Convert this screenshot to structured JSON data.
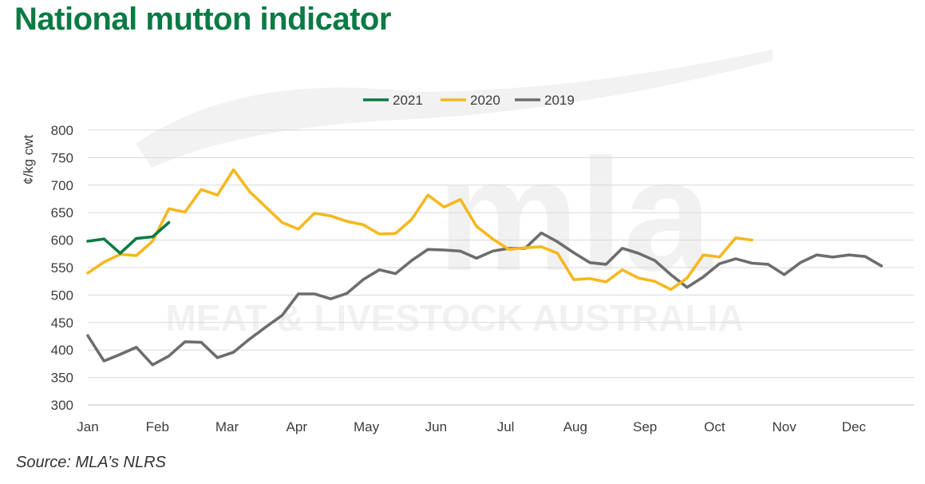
{
  "title": "National mutton indicator",
  "source": "Source: MLA’s NLRS",
  "watermark": {
    "logo_text": "mla",
    "tagline": "MEAT & LIVESTOCK AUSTRALIA"
  },
  "colors": {
    "s2021": "#0b7a45",
    "s2020": "#f5b81f",
    "s2019": "#6d6d6d",
    "grid": "#d9d9d9",
    "title": "#0b7a45"
  },
  "chart_data": {
    "type": "line",
    "ylabel": "¢/kg cwt",
    "xlabel": "",
    "ylim": [
      300,
      800
    ],
    "yticks": [
      300,
      350,
      400,
      450,
      500,
      550,
      600,
      650,
      700,
      750,
      800
    ],
    "xlim": [
      0,
      51
    ],
    "x_ticks": [
      {
        "label": "Jan",
        "week": 0
      },
      {
        "label": "Feb",
        "week": 4.3
      },
      {
        "label": "Mar",
        "week": 8.6
      },
      {
        "label": "Apr",
        "week": 12.9
      },
      {
        "label": "May",
        "week": 17.2
      },
      {
        "label": "Jun",
        "week": 21.5
      },
      {
        "label": "Jul",
        "week": 25.8
      },
      {
        "label": "Aug",
        "week": 30.1
      },
      {
        "label": "Sep",
        "week": 34.4
      },
      {
        "label": "Oct",
        "week": 38.7
      },
      {
        "label": "Nov",
        "week": 43
      },
      {
        "label": "Dec",
        "week": 47.3
      }
    ],
    "legend_position": "top-center",
    "grid": true,
    "series": [
      {
        "name": "2021",
        "color": "#0b7a45",
        "values": [
          598,
          602,
          576,
          603,
          606,
          632
        ]
      },
      {
        "name": "2020",
        "color": "#f5b81f",
        "values": [
          540,
          560,
          574,
          572,
          598,
          657,
          651,
          692,
          682,
          728,
          688,
          660,
          632,
          620,
          649,
          644,
          634,
          628,
          611,
          612,
          638,
          682,
          660,
          674,
          625,
          602,
          583,
          586,
          588,
          576,
          528,
          530,
          524,
          546,
          531,
          525,
          510,
          531,
          573,
          569,
          604,
          600
        ]
      },
      {
        "name": "2019",
        "color": "#6d6d6d",
        "values": [
          426,
          380,
          392,
          405,
          373,
          389,
          415,
          414,
          386,
          396,
          420,
          442,
          463,
          502,
          502,
          493,
          503,
          528,
          546,
          539,
          563,
          583,
          582,
          580,
          567,
          580,
          585,
          585,
          613,
          597,
          577,
          559,
          556,
          585,
          576,
          563,
          537,
          514,
          533,
          557,
          566,
          558,
          556,
          537,
          559,
          573,
          569,
          573,
          570,
          553
        ]
      }
    ]
  }
}
